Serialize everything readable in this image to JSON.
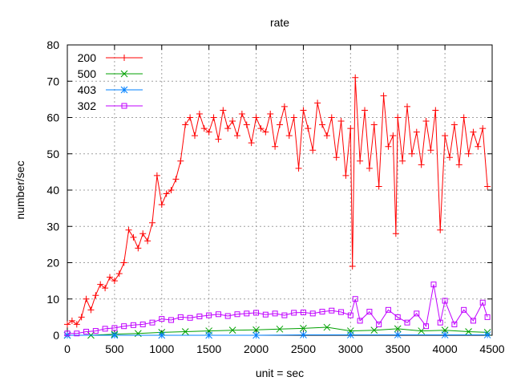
{
  "chart_data": {
    "type": "line",
    "title": "rate",
    "xlabel": "unit = sec",
    "ylabel": "number/sec",
    "xlim": [
      0,
      4500
    ],
    "ylim": [
      0,
      80
    ],
    "xticks": [
      0,
      500,
      1000,
      1500,
      2000,
      2500,
      3000,
      3500,
      4000,
      4500
    ],
    "yticks": [
      0,
      10,
      20,
      30,
      40,
      50,
      60,
      70,
      80
    ],
    "grid": true,
    "legend_position": "top-left",
    "series": [
      {
        "name": "200",
        "color": "#ff0000",
        "marker": "plus",
        "x": [
          0,
          50,
          100,
          150,
          200,
          250,
          300,
          350,
          400,
          450,
          500,
          550,
          600,
          650,
          700,
          750,
          800,
          850,
          900,
          950,
          1000,
          1050,
          1100,
          1150,
          1200,
          1250,
          1300,
          1350,
          1400,
          1450,
          1500,
          1550,
          1600,
          1650,
          1700,
          1750,
          1800,
          1850,
          1900,
          1950,
          2000,
          2050,
          2100,
          2150,
          2200,
          2250,
          2300,
          2350,
          2400,
          2450,
          2500,
          2550,
          2600,
          2650,
          2700,
          2750,
          2800,
          2850,
          2900,
          2950,
          3000,
          3020,
          3050,
          3100,
          3150,
          3200,
          3250,
          3300,
          3350,
          3400,
          3450,
          3480,
          3500,
          3550,
          3600,
          3650,
          3700,
          3750,
          3800,
          3850,
          3900,
          3950,
          4000,
          4050,
          4100,
          4150,
          4200,
          4250,
          4300,
          4350,
          4400,
          4450
        ],
        "values": [
          3,
          4,
          3,
          5,
          10,
          7,
          11,
          14,
          13,
          16,
          15,
          17,
          20,
          29,
          27,
          24,
          28,
          26,
          31,
          44,
          36,
          39,
          40,
          43,
          48,
          58,
          60,
          55,
          61,
          57,
          56,
          60,
          54,
          62,
          57,
          59,
          55,
          61,
          58,
          53,
          60,
          57,
          56,
          61,
          52,
          58,
          63,
          55,
          60,
          46,
          62,
          57,
          51,
          64,
          58,
          55,
          60,
          49,
          59,
          44,
          57,
          19,
          71,
          48,
          62,
          46,
          58,
          41,
          66,
          52,
          55,
          28,
          60,
          48,
          63,
          50,
          56,
          47,
          59,
          51,
          62,
          29,
          55,
          49,
          58,
          47,
          60,
          50,
          56,
          52,
          57,
          41
        ]
      },
      {
        "name": "500",
        "color": "#00a000",
        "marker": "cross",
        "x": [
          0,
          250,
          500,
          750,
          1000,
          1250,
          1500,
          1750,
          2000,
          2250,
          2500,
          2750,
          3000,
          3250,
          3500,
          3750,
          4000,
          4250,
          4450
        ],
        "values": [
          0,
          0,
          0.3,
          0.5,
          0.8,
          1,
          1.2,
          1.4,
          1.5,
          1.7,
          1.9,
          2.2,
          1.2,
          1.4,
          1.8,
          1.2,
          1.4,
          1.0,
          0.8
        ]
      },
      {
        "name": "403",
        "color": "#0080ff",
        "marker": "star",
        "x": [
          0,
          500,
          1000,
          1500,
          2000,
          2500,
          3000,
          3500,
          4000,
          4450
        ],
        "values": [
          0,
          0,
          0,
          0,
          0,
          0.1,
          0.1,
          0.1,
          0.1,
          0.1
        ]
      },
      {
        "name": "302",
        "color": "#c000ff",
        "marker": "square",
        "x": [
          0,
          100,
          200,
          300,
          400,
          500,
          600,
          700,
          800,
          900,
          1000,
          1100,
          1200,
          1300,
          1400,
          1500,
          1600,
          1700,
          1800,
          1900,
          2000,
          2100,
          2200,
          2300,
          2400,
          2500,
          2600,
          2700,
          2800,
          2900,
          3000,
          3050,
          3100,
          3200,
          3300,
          3400,
          3500,
          3600,
          3700,
          3800,
          3880,
          3950,
          4000,
          4100,
          4200,
          4300,
          4400,
          4450
        ],
        "values": [
          0.5,
          0.5,
          1,
          1.2,
          1.8,
          2,
          2.5,
          2.8,
          3,
          3.5,
          4.5,
          4.2,
          5,
          4.8,
          5.2,
          5.5,
          5.8,
          5.3,
          5.8,
          6,
          6.2,
          5.7,
          6,
          5.5,
          6.2,
          6.3,
          6,
          6.5,
          6.8,
          6.4,
          5.5,
          10,
          4,
          6.5,
          3,
          7,
          5,
          3.5,
          6,
          2.5,
          14,
          3.5,
          9.5,
          3,
          7,
          4,
          9,
          5
        ]
      }
    ]
  }
}
